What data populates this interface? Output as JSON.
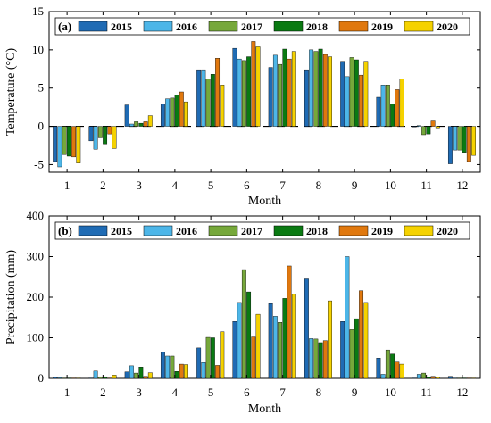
{
  "colors": [
    "#1f6bb4",
    "#4db6e8",
    "#76a83a",
    "#0a7a12",
    "#e0780e",
    "#f5d200"
  ],
  "chart_data": [
    {
      "panel_label": "(a)",
      "type": "bar",
      "categories": [
        "1",
        "2",
        "3",
        "4",
        "5",
        "6",
        "7",
        "8",
        "9",
        "10",
        "11",
        "12"
      ],
      "xlabel": "Month",
      "ylabel": "Temperature (°C)",
      "ylim": [
        -6,
        15
      ],
      "yticks": [
        "-5",
        "0",
        "5",
        "10",
        "15"
      ],
      "reference_line": {
        "y": 0,
        "style": "dashed"
      },
      "legend_position": "top, inside",
      "series": [
        {
          "name": "2015",
          "values": [
            -4.6,
            -1.9,
            2.8,
            2.9,
            7.4,
            10.2,
            7.7,
            7.4,
            8.5,
            3.8,
            0.0,
            -4.9
          ]
        },
        {
          "name": "2016",
          "values": [
            -5.3,
            -3.0,
            0.3,
            3.6,
            7.4,
            8.8,
            9.3,
            10.0,
            6.5,
            5.4,
            0.1,
            -3.1
          ]
        },
        {
          "name": "2017",
          "values": [
            -3.7,
            -1.5,
            0.6,
            3.7,
            6.2,
            8.6,
            8.1,
            9.8,
            9.0,
            5.4,
            -1.1,
            -3.1
          ]
        },
        {
          "name": "2018",
          "values": [
            -3.9,
            -2.3,
            0.4,
            4.1,
            6.8,
            9.1,
            10.1,
            10.1,
            8.7,
            2.9,
            -1.0,
            -3.4
          ]
        },
        {
          "name": "2019",
          "values": [
            -4.0,
            -1.0,
            0.6,
            4.5,
            8.9,
            11.1,
            8.8,
            9.4,
            6.7,
            4.8,
            0.7,
            -4.6
          ]
        },
        {
          "name": "2020",
          "values": [
            -4.8,
            -2.9,
            1.4,
            3.2,
            5.4,
            10.4,
            9.8,
            9.1,
            8.5,
            6.2,
            -0.2,
            -3.8
          ]
        }
      ]
    },
    {
      "panel_label": "(b)",
      "type": "bar",
      "categories": [
        "1",
        "2",
        "3",
        "4",
        "5",
        "6",
        "7",
        "8",
        "9",
        "10",
        "11",
        "12"
      ],
      "xlabel": "Month",
      "ylabel": "Precipitation (mm)",
      "ylim": [
        0,
        400
      ],
      "yticks": [
        "0",
        "100",
        "200",
        "300",
        "400"
      ],
      "legend_position": "top, inside",
      "series": [
        {
          "name": "2015",
          "values": [
            3,
            1,
            16,
            65,
            75,
            140,
            184,
            245,
            140,
            50,
            1,
            5
          ]
        },
        {
          "name": "2016",
          "values": [
            2,
            18,
            31,
            55,
            39,
            187,
            153,
            98,
            300,
            10,
            10,
            1
          ]
        },
        {
          "name": "2017",
          "values": [
            1,
            4,
            13,
            55,
            101,
            268,
            138,
            97,
            120,
            70,
            13,
            1
          ]
        },
        {
          "name": "2018",
          "values": [
            1,
            4,
            28,
            17,
            100,
            213,
            197,
            88,
            147,
            60,
            3,
            1
          ]
        },
        {
          "name": "2019",
          "values": [
            1,
            1,
            5,
            35,
            32,
            102,
            277,
            93,
            216,
            40,
            5,
            1
          ]
        },
        {
          "name": "2020",
          "values": [
            1,
            8,
            14,
            34,
            115,
            158,
            208,
            191,
            187,
            35,
            3,
            1
          ]
        }
      ]
    }
  ]
}
